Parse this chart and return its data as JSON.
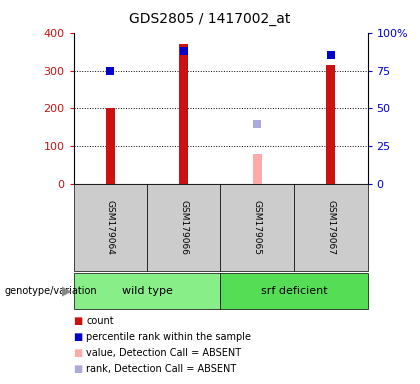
{
  "title": "GDS2805 / 1417002_at",
  "samples": [
    "GSM179064",
    "GSM179066",
    "GSM179065",
    "GSM179067"
  ],
  "count_values": [
    200,
    370,
    null,
    315
  ],
  "count_color": "#cc1111",
  "percentile_values": [
    75,
    88,
    null,
    85
  ],
  "percentile_color": "#0000cc",
  "absent_value_values": [
    null,
    null,
    80,
    null
  ],
  "absent_value_color": "#ffaaaa",
  "absent_rank_values": [
    null,
    null,
    40,
    null
  ],
  "absent_rank_color": "#aaaadd",
  "ylim_left": [
    0,
    400
  ],
  "ylim_right": [
    0,
    100
  ],
  "yticks_left": [
    0,
    100,
    200,
    300,
    400
  ],
  "yticks_right": [
    0,
    25,
    50,
    75,
    100
  ],
  "ytick_labels_right": [
    "0",
    "25",
    "50",
    "75",
    "100%"
  ],
  "groups": [
    {
      "label": "wild type",
      "samples": [
        0,
        1
      ],
      "color": "#88ee88"
    },
    {
      "label": "srf deficient",
      "samples": [
        2,
        3
      ],
      "color": "#55dd55"
    }
  ],
  "sample_row_color": "#cccccc",
  "bar_width": 0.12,
  "legend_items": [
    {
      "label": "count",
      "color": "#cc1111"
    },
    {
      "label": "percentile rank within the sample",
      "color": "#0000cc"
    },
    {
      "label": "value, Detection Call = ABSENT",
      "color": "#ffaaaa"
    },
    {
      "label": "rank, Detection Call = ABSENT",
      "color": "#aaaadd"
    }
  ],
  "genotype_label": "genotype/variation",
  "left_tick_color": "#cc1111",
  "right_tick_color": "#0000cc",
  "title_fontsize": 10
}
